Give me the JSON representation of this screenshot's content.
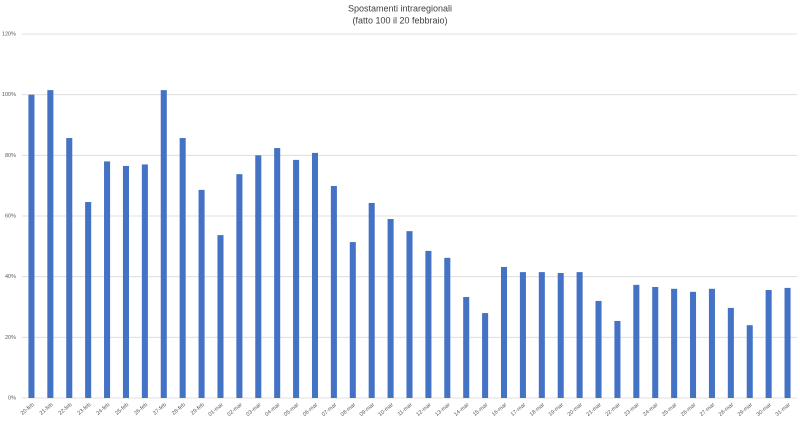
{
  "chart_data": {
    "type": "bar",
    "title": "Spostamenti intraregionali",
    "subtitle": "(fatto 100 il 20 febbraio)",
    "categories": [
      "20-feb",
      "21-feb",
      "22-feb",
      "23-feb",
      "24-feb",
      "25-feb",
      "26-feb",
      "27-feb",
      "28-feb",
      "29-feb",
      "01-mar",
      "02-mar",
      "03-mar",
      "04-mar",
      "05-mar",
      "06-mar",
      "07-mar",
      "08-mar",
      "09-mar",
      "10-mar",
      "11-mar",
      "12-mar",
      "13-mar",
      "14-mar",
      "15-mar",
      "16-mar",
      "17-mar",
      "18-mar",
      "19-mar",
      "20-mar",
      "21-mar",
      "22-mar",
      "23-mar",
      "24-mar",
      "25-mar",
      "26-mar",
      "27-mar",
      "28-mar",
      "29-mar",
      "30-mar",
      "31-mar"
    ],
    "values": [
      100,
      101.5,
      85.7,
      64.6,
      78,
      76.5,
      77,
      101.5,
      85.7,
      68.6,
      53.7,
      73.8,
      80,
      82.4,
      78.5,
      80.8,
      69.9,
      51.4,
      64.3,
      59,
      55,
      48.5,
      46.2,
      33.3,
      28,
      43.2,
      41.5,
      41.5,
      41.2,
      41.5,
      32,
      25.4,
      37.3,
      36.6,
      36,
      35,
      36,
      29.7,
      24,
      35.6,
      36.3
    ],
    "color": "#4472c4",
    "ylim": [
      0,
      120
    ],
    "yticks": [
      {
        "value": 0,
        "label": "0%"
      },
      {
        "value": 20,
        "label": "20%"
      },
      {
        "value": 40,
        "label": "40%"
      },
      {
        "value": 60,
        "label": "60%"
      },
      {
        "value": 80,
        "label": "80%"
      },
      {
        "value": 100,
        "label": "100%"
      },
      {
        "value": 120,
        "label": "120%"
      }
    ],
    "grid": true
  }
}
